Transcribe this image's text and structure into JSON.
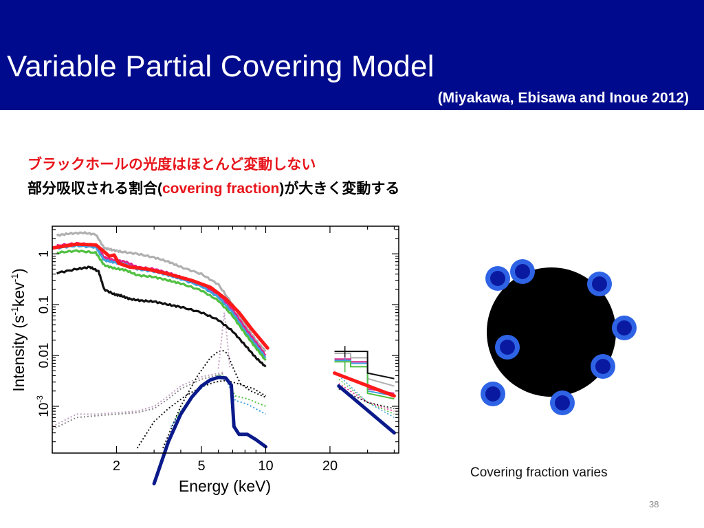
{
  "slide": {
    "title": "Variable Partial Covering Model",
    "citation": "(Miyakawa, Ebisawa and Inoue 2012)",
    "bullet1": "ブラックホールの光度はほとんど変動しない",
    "bullet2_prefix": "部分吸収される割合",
    "bullet2_paren_open": "(",
    "bullet2_highlight": "covering fraction",
    "bullet2_paren_close": ")",
    "bullet2_suffix": "が大きく変動する",
    "caption": "Covering fraction varies",
    "page_number": "38"
  },
  "colors": {
    "header_bg": "#000a8c",
    "highlight_red": "#e8141b",
    "model_red": "#ff1a1a",
    "model_navy": "#0a1a8a",
    "blob_fill": "#2f63e6",
    "blob_core": "#0a1aa0"
  },
  "chart_data": {
    "type": "line",
    "xlabel": "Energy (keV)",
    "ylabel_parts": {
      "base": "Intensity (s",
      "sup1": "-1",
      "mid": "kev",
      "sup2": "-1",
      "end": ")"
    },
    "x_scale": "log",
    "y_scale": "log",
    "xlim": [
      1.0,
      42
    ],
    "ylim": [
      0.00012,
      3.5
    ],
    "x_ticks": [
      {
        "value": 2,
        "label": "2"
      },
      {
        "value": 5,
        "label": "5"
      },
      {
        "value": 10,
        "label": "10"
      },
      {
        "value": 20,
        "label": "20"
      }
    ],
    "y_ticks": [
      {
        "value": 1,
        "label": "1"
      },
      {
        "value": 0.1,
        "label": "0.1"
      },
      {
        "value": 0.01,
        "label": "0.01"
      },
      {
        "value": 0.001,
        "label": "10",
        "sup": "-3"
      }
    ],
    "data_series": [
      {
        "color": "#b0b0b0",
        "points": [
          [
            1.05,
            2.3
          ],
          [
            1.2,
            2.5
          ],
          [
            1.4,
            2.6
          ],
          [
            1.6,
            2.4
          ],
          [
            1.75,
            1.3
          ],
          [
            1.9,
            1.2
          ],
          [
            2.1,
            1.1
          ],
          [
            2.5,
            1.0
          ],
          [
            3,
            0.85
          ],
          [
            3.5,
            0.7
          ],
          [
            4,
            0.55
          ],
          [
            5,
            0.4
          ],
          [
            6,
            0.25
          ],
          [
            7,
            0.1
          ],
          [
            8,
            0.04
          ],
          [
            9,
            0.02
          ],
          [
            10,
            0.012
          ]
        ],
        "upper": [
          [
            21,
            0.011
          ],
          [
            25,
            0.009
          ],
          [
            30,
            0.0035
          ],
          [
            40,
            0.0025
          ]
        ]
      },
      {
        "color": "#e0218a",
        "points": [
          [
            1.05,
            1.45
          ],
          [
            1.3,
            1.6
          ],
          [
            1.6,
            1.5
          ],
          [
            1.75,
            0.85
          ],
          [
            1.95,
            0.75
          ],
          [
            2.2,
            0.7
          ],
          [
            2.5,
            0.55
          ],
          [
            3,
            0.5
          ],
          [
            3.5,
            0.42
          ],
          [
            4,
            0.35
          ],
          [
            5,
            0.25
          ],
          [
            6,
            0.16
          ],
          [
            7,
            0.08
          ],
          [
            8,
            0.035
          ],
          [
            9,
            0.018
          ],
          [
            10,
            0.01
          ]
        ],
        "upper": [
          [
            21,
            0.0085
          ],
          [
            25,
            0.0075
          ],
          [
            30,
            0.0022
          ],
          [
            40,
            0.0018
          ]
        ]
      },
      {
        "color": "#3fa0e0",
        "points": [
          [
            1.05,
            1.3
          ],
          [
            1.3,
            1.45
          ],
          [
            1.6,
            1.35
          ],
          [
            1.75,
            0.75
          ],
          [
            1.95,
            0.68
          ],
          [
            2.2,
            0.62
          ],
          [
            2.5,
            0.5
          ],
          [
            3,
            0.45
          ],
          [
            3.5,
            0.38
          ],
          [
            4,
            0.32
          ],
          [
            5,
            0.23
          ],
          [
            6,
            0.14
          ],
          [
            7,
            0.07
          ],
          [
            8,
            0.03
          ],
          [
            9,
            0.016
          ],
          [
            10,
            0.009
          ]
        ],
        "upper": [
          [
            21,
            0.008
          ],
          [
            25,
            0.007
          ],
          [
            30,
            0.002
          ],
          [
            40,
            0.0016
          ]
        ]
      },
      {
        "color": "#50c040",
        "points": [
          [
            1.05,
            1.05
          ],
          [
            1.3,
            1.15
          ],
          [
            1.6,
            1.05
          ],
          [
            1.75,
            0.6
          ],
          [
            1.95,
            0.52
          ],
          [
            2.2,
            0.48
          ],
          [
            2.5,
            0.38
          ],
          [
            3,
            0.35
          ],
          [
            3.5,
            0.3
          ],
          [
            4,
            0.26
          ],
          [
            5,
            0.19
          ],
          [
            6,
            0.12
          ],
          [
            7,
            0.06
          ],
          [
            8,
            0.027
          ],
          [
            9,
            0.014
          ],
          [
            10,
            0.008
          ]
        ],
        "upper": [
          [
            21,
            0.0075
          ],
          [
            25,
            0.006
          ],
          [
            30,
            0.0018
          ],
          [
            40,
            0.0014
          ]
        ]
      },
      {
        "color": "#111111",
        "points": [
          [
            1.05,
            0.42
          ],
          [
            1.3,
            0.5
          ],
          [
            1.5,
            0.55
          ],
          [
            1.65,
            0.45
          ],
          [
            1.75,
            0.2
          ],
          [
            1.95,
            0.16
          ],
          [
            2.1,
            0.15
          ],
          [
            2.3,
            0.13
          ],
          [
            2.6,
            0.12
          ],
          [
            3,
            0.115
          ],
          [
            3.5,
            0.1
          ],
          [
            4,
            0.09
          ],
          [
            5,
            0.07
          ],
          [
            6,
            0.05
          ],
          [
            7,
            0.03
          ],
          [
            8,
            0.016
          ],
          [
            9,
            0.009
          ],
          [
            10,
            0.006
          ]
        ],
        "upper": [
          [
            21,
            0.012
          ],
          [
            25,
            0.012
          ],
          [
            30,
            0.0045
          ],
          [
            40,
            0.0035
          ]
        ]
      }
    ],
    "model_lines": [
      {
        "name": "",
        "color": "#ff1a1a",
        "points": [
          [
            1.0,
            1.3
          ],
          [
            1.3,
            1.55
          ],
          [
            1.6,
            1.5
          ],
          [
            1.75,
            1.1
          ],
          [
            1.85,
            0.9
          ],
          [
            1.95,
            0.95
          ],
          [
            2.05,
            0.65
          ],
          [
            2.3,
            0.55
          ],
          [
            2.8,
            0.5
          ],
          [
            3.5,
            0.4
          ],
          [
            4.5,
            0.3
          ],
          [
            5.5,
            0.22
          ],
          [
            6.5,
            0.13
          ],
          [
            7.5,
            0.07
          ],
          [
            8.5,
            0.035
          ],
          [
            9.5,
            0.02
          ],
          [
            10.2,
            0.014
          ]
        ],
        "upper": [
          [
            21,
            0.0045
          ],
          [
            40,
            0.0016
          ]
        ]
      },
      {
        "name": "",
        "color": "#0a1a8a",
        "points": [
          [
            3.0,
            3e-05
          ],
          [
            3.5,
            0.0002
          ],
          [
            4.0,
            0.0007
          ],
          [
            4.5,
            0.0015
          ],
          [
            5.0,
            0.0025
          ],
          [
            5.5,
            0.0033
          ],
          [
            6.0,
            0.0037
          ],
          [
            6.5,
            0.0036
          ],
          [
            6.9,
            0.0026
          ],
          [
            7.1,
            0.0004
          ],
          [
            7.5,
            0.00028
          ],
          [
            8.2,
            0.00028
          ],
          [
            9.0,
            0.00022
          ],
          [
            10.0,
            0.00016
          ]
        ],
        "upper": [
          [
            22,
            0.0025
          ],
          [
            40,
            0.0003
          ]
        ]
      }
    ],
    "component_curves": [
      {
        "color": "#c0a0c0",
        "points": [
          [
            1.0,
            0.0004
          ],
          [
            1.3,
            0.0007
          ],
          [
            1.6,
            0.0007
          ],
          [
            2.0,
            0.00075
          ],
          [
            2.5,
            0.0008
          ],
          [
            3.0,
            0.001
          ],
          [
            3.5,
            0.0016
          ],
          [
            4.0,
            0.0025
          ],
          [
            5.0,
            0.0038
          ],
          [
            6.0,
            0.0045
          ],
          [
            6.4,
            0.0047
          ]
        ]
      },
      {
        "color": "#8a8a8a",
        "points": [
          [
            1.0,
            0.00035
          ],
          [
            1.3,
            0.0006
          ],
          [
            1.6,
            0.00065
          ],
          [
            2.0,
            0.0007
          ],
          [
            2.5,
            0.00075
          ],
          [
            3.0,
            0.0009
          ],
          [
            3.5,
            0.0014
          ],
          [
            4.0,
            0.0022
          ],
          [
            5.0,
            0.0034
          ],
          [
            6.0,
            0.0042
          ],
          [
            6.4,
            0.0044
          ]
        ]
      },
      {
        "color": "#111111",
        "points": [
          [
            3.3,
            0.00015
          ],
          [
            4.0,
            0.001
          ],
          [
            4.8,
            0.004
          ],
          [
            5.5,
            0.009
          ],
          [
            6.0,
            0.012
          ],
          [
            6.3,
            0.0125
          ],
          [
            6.6,
            0.011
          ],
          [
            7.0,
            0.006
          ],
          [
            7.6,
            0.0028
          ],
          [
            8.5,
            0.002
          ],
          [
            10.0,
            0.0015
          ]
        ]
      },
      {
        "color": "#111111",
        "points": [
          [
            2.5,
            0.00015
          ],
          [
            3.0,
            0.0005
          ],
          [
            3.5,
            0.0009
          ],
          [
            4.2,
            0.0016
          ],
          [
            5.0,
            0.0024
          ],
          [
            5.8,
            0.003
          ],
          [
            6.4,
            0.0032
          ],
          [
            7.0,
            0.003
          ],
          [
            7.8,
            0.0026
          ],
          [
            8.8,
            0.0022
          ],
          [
            10.0,
            0.0016
          ]
        ]
      },
      {
        "color": "#3fa0e0",
        "points": [
          [
            3.6,
            0.0004
          ],
          [
            4.5,
            0.0015
          ],
          [
            5.3,
            0.0028
          ],
          [
            6.0,
            0.0038
          ],
          [
            6.5,
            0.0035
          ],
          [
            7.2,
            0.0013
          ],
          [
            8.2,
            0.0011
          ],
          [
            10.0,
            0.0007
          ]
        ]
      },
      {
        "color": "#50c040",
        "points": [
          [
            3.8,
            0.0006
          ],
          [
            4.6,
            0.0018
          ],
          [
            5.4,
            0.003
          ],
          [
            6.0,
            0.0041
          ],
          [
            6.5,
            0.0038
          ],
          [
            7.2,
            0.0016
          ],
          [
            8.2,
            0.0014
          ],
          [
            10.0,
            0.001
          ]
        ]
      },
      {
        "color": "#c0a0c0",
        "points": [
          [
            6.0,
            0.0055
          ],
          [
            6.2,
            0.02
          ],
          [
            6.4,
            0.07
          ],
          [
            6.6,
            0.02
          ],
          [
            6.8,
            0.0055
          ]
        ]
      }
    ]
  },
  "diagram": {
    "central_object": "black-hole",
    "clouds": 8
  }
}
